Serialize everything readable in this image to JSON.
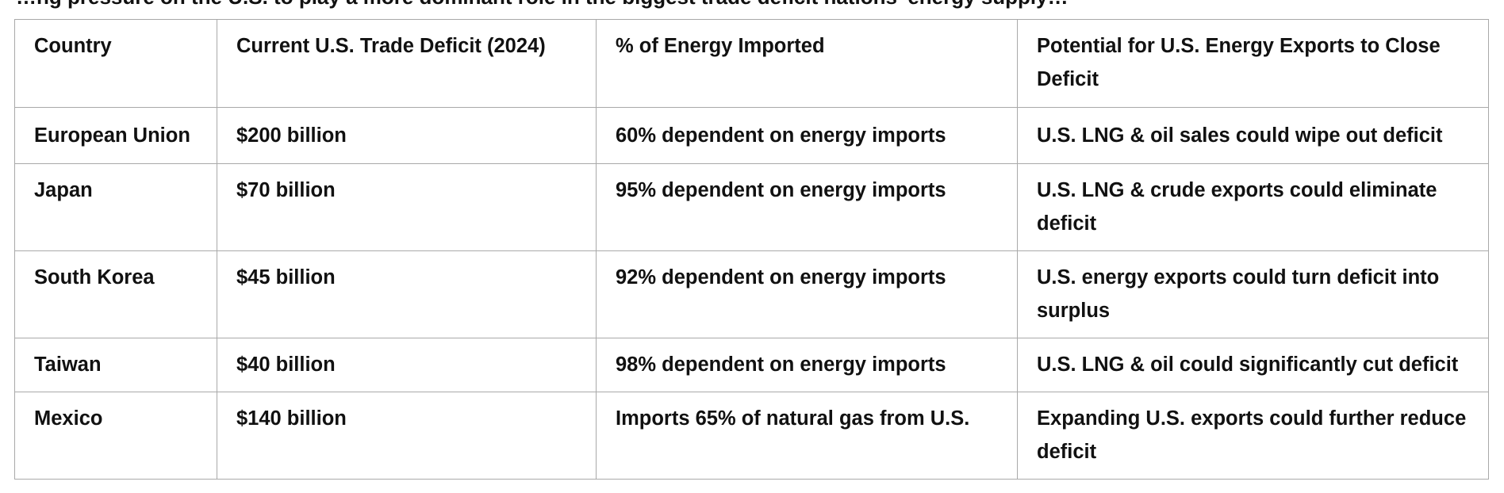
{
  "heading_partial": "…ng pressure on the U.S. to play a more dominant role in the biggest trade deficit nations' energy supply…",
  "table": {
    "headers": [
      "Country",
      "Current U.S. Trade Deficit (2024)",
      "% of Energy Imported",
      "Potential for U.S. Energy Exports to Close Deficit"
    ],
    "rows": [
      [
        "European Union",
        "$200 billion",
        "60% dependent on energy imports",
        "U.S. LNG & oil sales could wipe out deficit"
      ],
      [
        "Japan",
        "$70 billion",
        "95% dependent on energy imports",
        "U.S. LNG & crude exports could eliminate deficit"
      ],
      [
        "South Korea",
        "$45 billion",
        "92% dependent on energy imports",
        "U.S. energy exports could turn deficit into surplus"
      ],
      [
        "Taiwan",
        "$40 billion",
        "98% dependent on energy imports",
        "U.S. LNG & oil could significantly cut deficit"
      ],
      [
        "Mexico",
        "$140 billion",
        "Imports 65% of natural gas from U.S.",
        "Expanding U.S. exports could further reduce deficit"
      ]
    ]
  }
}
